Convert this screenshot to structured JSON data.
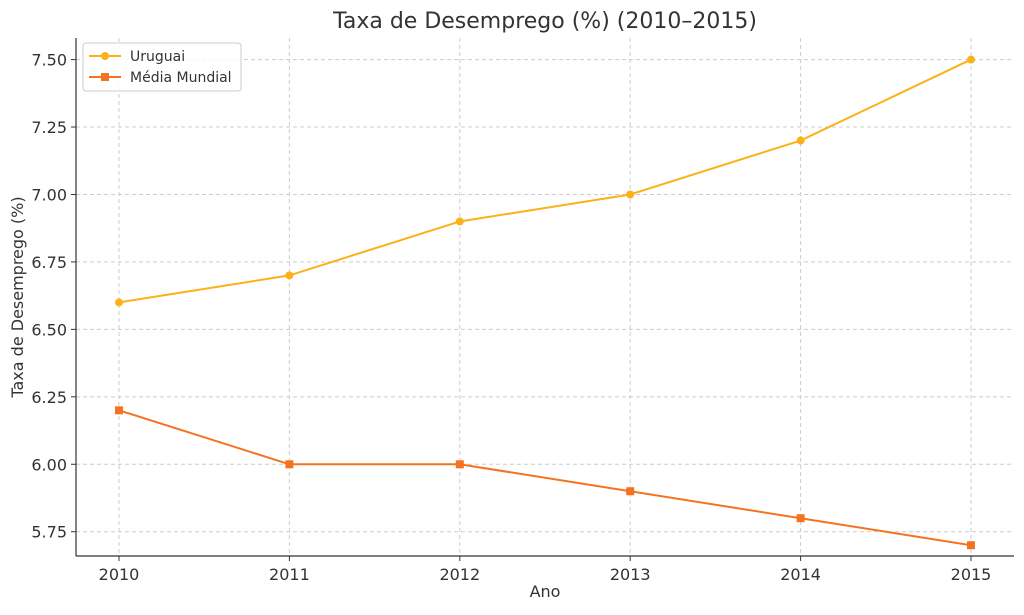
{
  "chart_data": {
    "type": "line",
    "title": "Taxa de Desemprego (%) (2010–2015)",
    "xlabel": "Ano",
    "ylabel": "Taxa de Desemprego (%)",
    "x": [
      2010,
      2011,
      2012,
      2013,
      2014,
      2015
    ],
    "x_tick_labels": [
      "2010",
      "2011",
      "2012",
      "2013",
      "2014",
      "2015"
    ],
    "ylim": [
      5.66,
      7.58
    ],
    "y_ticks": [
      5.75,
      6.0,
      6.25,
      6.5,
      6.75,
      7.0,
      7.25,
      7.5
    ],
    "y_tick_labels": [
      "5.75",
      "6.00",
      "6.25",
      "6.50",
      "6.75",
      "7.00",
      "7.25",
      "7.50"
    ],
    "grid": true,
    "legend_position": "top-left",
    "series": [
      {
        "name": "Uruguai",
        "values": [
          6.6,
          6.7,
          6.9,
          7.0,
          7.2,
          7.5
        ],
        "color": "#fbb117",
        "marker": "circle"
      },
      {
        "name": "Média Mundial",
        "values": [
          6.2,
          6.0,
          6.0,
          5.9,
          5.8,
          5.7
        ],
        "color": "#f47321",
        "marker": "square"
      }
    ]
  }
}
